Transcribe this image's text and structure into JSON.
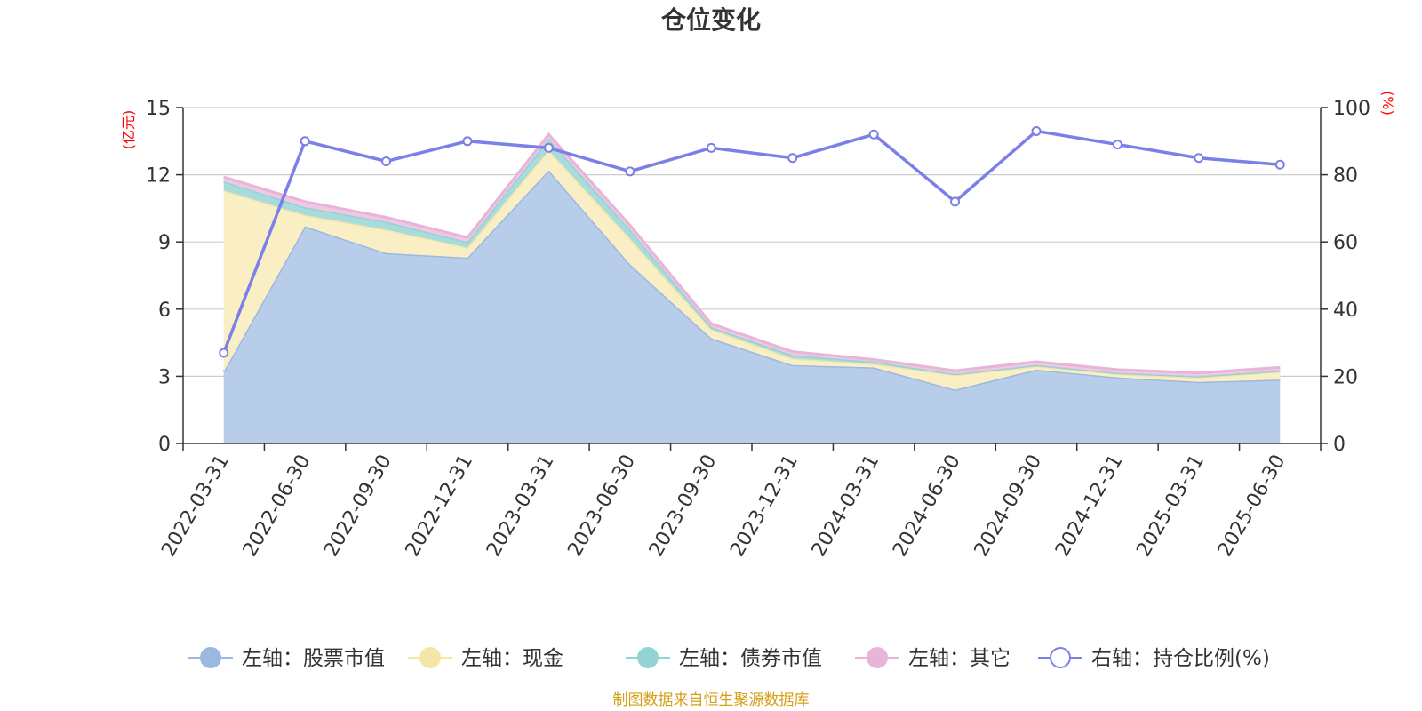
{
  "chart_data": {
    "type": "area",
    "title": "仓位变化",
    "left_axis_unit": "(亿元)",
    "right_axis_unit": "(%)",
    "categories": [
      "2022-03-31",
      "2022-06-30",
      "2022-09-30",
      "2022-12-31",
      "2023-03-31",
      "2023-06-30",
      "2023-09-30",
      "2023-12-31",
      "2024-03-31",
      "2024-06-30",
      "2024-09-30",
      "2024-12-31",
      "2025-03-31",
      "2025-06-30"
    ],
    "left_ylim": [
      0,
      15
    ],
    "left_yticks": [
      "0",
      "3",
      "6",
      "9",
      "12",
      "15"
    ],
    "right_ylim": [
      0,
      100
    ],
    "right_yticks": [
      "0",
      "20",
      "40",
      "60",
      "80",
      "100"
    ],
    "stacked_series": [
      {
        "name": "左轴：股票市值",
        "color": "#9db8e0",
        "fill": "#b8cdea",
        "values": [
          3.2,
          9.7,
          8.5,
          8.3,
          12.2,
          8.0,
          4.7,
          3.5,
          3.4,
          2.4,
          3.3,
          2.95,
          2.75,
          2.85
        ]
      },
      {
        "name": "左轴：现金",
        "color": "#f5e6a8",
        "fill": "#faefc4",
        "values": [
          8.1,
          0.5,
          1.05,
          0.45,
          0.9,
          1.15,
          0.4,
          0.3,
          0.15,
          0.65,
          0.15,
          0.15,
          0.2,
          0.35
        ]
      },
      {
        "name": "左轴：债券市值",
        "color": "#93d3d3",
        "fill": "#a8dcdc",
        "values": [
          0.4,
          0.35,
          0.35,
          0.25,
          0.5,
          0.4,
          0.1,
          0.15,
          0.1,
          0.05,
          0.05,
          0.05,
          0.05,
          0.05
        ]
      },
      {
        "name": "左轴：其它",
        "color": "#e8b4d8",
        "fill": "#f0c8e4",
        "values": [
          0.2,
          0.25,
          0.2,
          0.2,
          0.2,
          0.2,
          0.15,
          0.15,
          0.1,
          0.15,
          0.15,
          0.15,
          0.15,
          0.15
        ]
      }
    ],
    "line_series": {
      "name": "右轴：持仓比例(%)",
      "color": "#7b7fe8",
      "values": [
        27,
        90,
        84,
        90,
        88,
        81,
        88,
        85,
        92,
        72,
        93,
        89,
        85,
        83
      ]
    },
    "grid": true,
    "legend_position": "bottom"
  },
  "source_text": "制图数据来自恒生聚源数据库"
}
